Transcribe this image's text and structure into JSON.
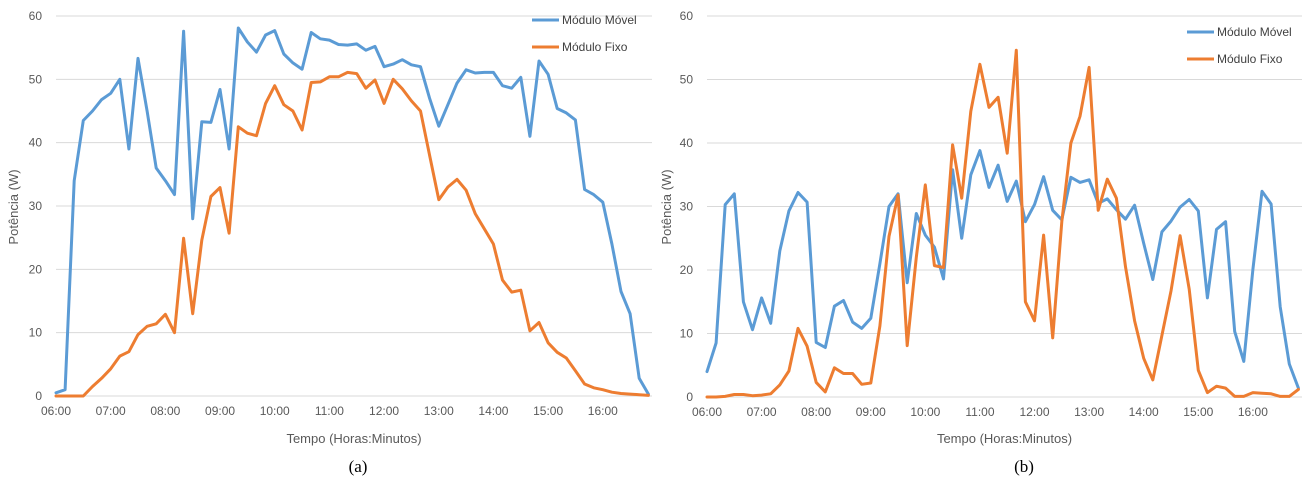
{
  "chart_data": [
    {
      "type": "line",
      "caption": "(a)",
      "xlabel": "Tempo (Horas:Minutos)",
      "ylabel": "Potência (W)",
      "ylim": [
        0,
        60
      ],
      "yticks": [
        "0",
        "10",
        "20",
        "30",
        "40",
        "50",
        "60"
      ],
      "xlim": [
        6.0,
        16.9
      ],
      "xticks": [
        "06:00",
        "07:00",
        "08:00",
        "09:00",
        "10:00",
        "11:00",
        "12:00",
        "13:00",
        "14:00",
        "15:00",
        "16:00"
      ],
      "grid": true,
      "legend_position": "top-right",
      "x": [
        "06:00",
        "06:10",
        "06:20",
        "06:30",
        "06:40",
        "06:50",
        "07:00",
        "07:10",
        "07:20",
        "07:30",
        "07:40",
        "07:50",
        "08:00",
        "08:10",
        "08:20",
        "08:30",
        "08:40",
        "08:50",
        "09:00",
        "09:10",
        "09:20",
        "09:30",
        "09:40",
        "09:50",
        "10:00",
        "10:10",
        "10:20",
        "10:30",
        "10:40",
        "10:50",
        "11:00",
        "11:10",
        "11:20",
        "11:30",
        "11:40",
        "11:50",
        "12:00",
        "12:10",
        "12:20",
        "12:30",
        "12:40",
        "12:50",
        "13:00",
        "13:10",
        "13:20",
        "13:30",
        "13:40",
        "13:50",
        "14:00",
        "14:10",
        "14:20",
        "14:30",
        "14:40",
        "14:50",
        "15:00",
        "15:10",
        "15:20",
        "15:30",
        "15:40",
        "15:50",
        "16:00",
        "16:10",
        "16:20",
        "16:30",
        "16:40",
        "16:50"
      ],
      "series": [
        {
          "name": "Módulo Móvel",
          "color": "#5b9bd5",
          "values": [
            0.5,
            1,
            34,
            43.5,
            45,
            46.8,
            47.8,
            50,
            39,
            53.3,
            45,
            36,
            34,
            31.8,
            57.6,
            28,
            43.3,
            43.2,
            48.4,
            39,
            58.1,
            55.9,
            54.3,
            57,
            57.7,
            54,
            52.6,
            51.6,
            57.4,
            56.4,
            56.2,
            55.5,
            55.4,
            55.6,
            54.6,
            55.2,
            52,
            52.4,
            53.1,
            52.3,
            52,
            47,
            42.6,
            46,
            49.4,
            51.5,
            51,
            51.1,
            51.1,
            49,
            48.6,
            50.3,
            41,
            52.9,
            50.8,
            45.4,
            44.7,
            43.6,
            32.6,
            31.8,
            30.6,
            24,
            16.5,
            13,
            2.8,
            0.3
          ]
        },
        {
          "name": "Módulo Fixo",
          "color": "#ed7d31",
          "values": [
            0,
            0,
            0,
            0,
            1.5,
            2.8,
            4.3,
            6.3,
            7,
            9.7,
            11,
            11.4,
            12.9,
            10,
            24.9,
            13,
            24.6,
            31.5,
            32.9,
            25.7,
            42.5,
            41.5,
            41.1,
            46.2,
            49,
            46,
            45,
            42,
            49.5,
            49.6,
            50.4,
            50.4,
            51.1,
            50.9,
            48.6,
            49.9,
            46.2,
            50,
            48.5,
            46.6,
            45,
            38,
            31,
            33,
            34.2,
            32.5,
            28.8,
            26.4,
            24,
            18.3,
            16.4,
            16.7,
            10.3,
            11.6,
            8.4,
            6.9,
            6,
            4,
            1.9,
            1.3,
            1,
            0.6,
            0.4,
            0.3,
            0.2,
            0.1
          ]
        }
      ]
    },
    {
      "type": "line",
      "caption": "(b)",
      "xlabel": "Tempo (Horas:Minutos)",
      "ylabel": "Potência (W)",
      "ylim": [
        0,
        60
      ],
      "yticks": [
        "0",
        "10",
        "20",
        "30",
        "40",
        "50",
        "60"
      ],
      "xlim": [
        6.0,
        16.9
      ],
      "xticks": [
        "06:00",
        "07:00",
        "08:00",
        "09:00",
        "10:00",
        "11:00",
        "12:00",
        "13:00",
        "14:00",
        "15:00",
        "16:00"
      ],
      "grid": true,
      "legend_position": "top-right",
      "x": [
        "06:00",
        "06:10",
        "06:20",
        "06:30",
        "06:40",
        "06:50",
        "07:00",
        "07:10",
        "07:20",
        "07:30",
        "07:40",
        "07:50",
        "08:00",
        "08:10",
        "08:20",
        "08:30",
        "08:40",
        "08:50",
        "09:00",
        "09:10",
        "09:20",
        "09:30",
        "09:40",
        "09:50",
        "10:00",
        "10:10",
        "10:20",
        "10:30",
        "10:40",
        "10:50",
        "11:00",
        "11:10",
        "11:20",
        "11:30",
        "11:40",
        "11:50",
        "12:00",
        "12:10",
        "12:20",
        "12:30",
        "12:40",
        "12:50",
        "13:00",
        "13:10",
        "13:20",
        "13:30",
        "13:40",
        "13:50",
        "14:00",
        "14:10",
        "14:20",
        "14:30",
        "14:40",
        "14:50",
        "15:00",
        "15:10",
        "15:20",
        "15:30",
        "15:40",
        "15:50",
        "16:00",
        "16:10",
        "16:20",
        "16:30",
        "16:40",
        "16:50"
      ],
      "series": [
        {
          "name": "Módulo Móvel",
          "color": "#5b9bd5",
          "values": [
            4,
            8.5,
            30.3,
            32,
            15,
            10.6,
            15.6,
            11.6,
            23,
            29.3,
            32.2,
            30.7,
            8.6,
            7.8,
            14.3,
            15.2,
            11.8,
            10.8,
            12.4,
            21,
            30,
            32,
            18,
            28.9,
            25.5,
            23.6,
            18.6,
            35.8,
            25,
            35,
            38.8,
            33,
            36.5,
            30.8,
            34,
            27.6,
            30.3,
            34.7,
            29.4,
            27.9,
            34.6,
            33.8,
            34.2,
            30.5,
            31.2,
            29.5,
            28,
            30.2,
            24.2,
            18.5,
            26,
            27.7,
            29.9,
            31.1,
            29.3,
            15.6,
            26.4,
            27.6,
            10.3,
            5.6,
            20.1,
            32.4,
            30.4,
            14.2,
            5.2,
            1.4
          ]
        },
        {
          "name": "Módulo Fixo",
          "color": "#ed7d31",
          "values": [
            0,
            0,
            0.1,
            0.4,
            0.4,
            0.2,
            0.3,
            0.5,
            1.9,
            4.1,
            10.8,
            8,
            2.3,
            0.8,
            4.6,
            3.7,
            3.7,
            2,
            2.2,
            11.2,
            25.3,
            31.8,
            8.1,
            22,
            33.4,
            20.7,
            20.4,
            39.7,
            31.3,
            45,
            52.4,
            45.6,
            47.2,
            38.4,
            54.6,
            15,
            12,
            25.5,
            9.3,
            27.6,
            40,
            44.2,
            51.9,
            29.4,
            34.3,
            31.3,
            20.5,
            12,
            6.1,
            2.7,
            9.7,
            16.7,
            25.4,
            17,
            4.2,
            0.7,
            1.7,
            1.4,
            0.1,
            0.1,
            0.7,
            0.6,
            0.5,
            0.1,
            0.1,
            1.2
          ]
        }
      ]
    }
  ]
}
